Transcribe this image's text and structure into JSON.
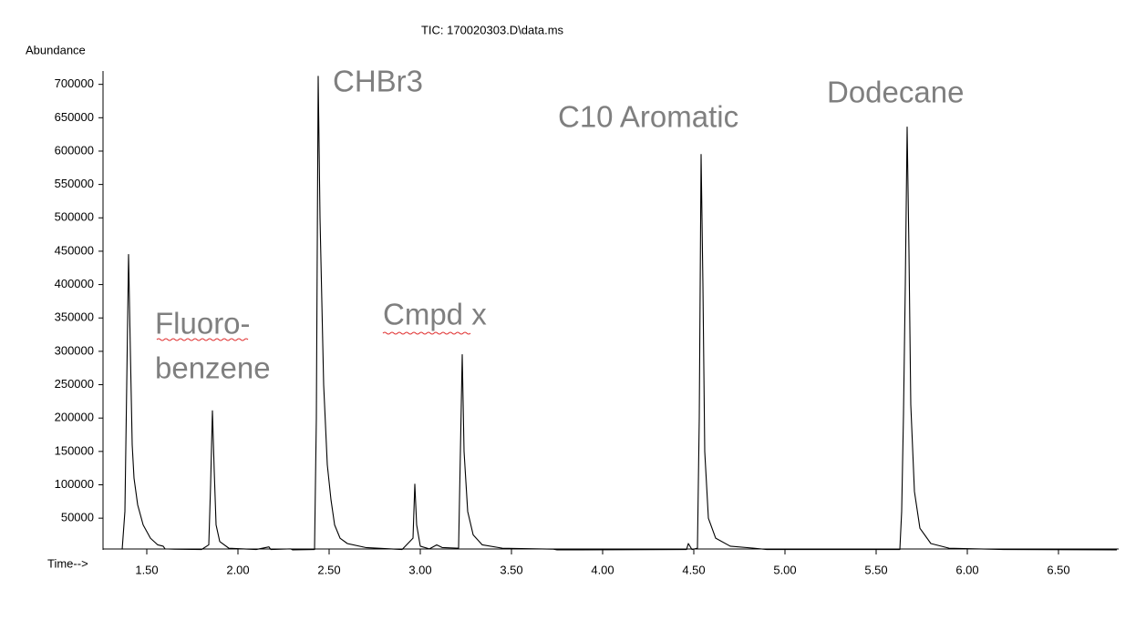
{
  "chart_data": {
    "type": "line",
    "title": "TIC: 170020303.D\\data.ms",
    "ylabel": "Abundance",
    "xlabel": "Time-->",
    "annotations": [
      "Fluoro-",
      "benzene",
      "CHBr3",
      "Cmpd x",
      "C10 Aromatic",
      "Dodecane"
    ],
    "x": [
      1.365,
      1.38,
      1.39,
      1.4,
      1.41,
      1.42,
      1.43,
      1.45,
      1.48,
      1.52,
      1.56,
      1.59,
      1.6,
      1.65,
      1.8,
      1.84,
      1.85,
      1.86,
      1.87,
      1.88,
      1.9,
      1.95,
      2.1,
      2.17,
      2.18,
      2.29,
      2.3,
      2.42,
      2.43,
      2.44,
      2.45,
      2.47,
      2.49,
      2.51,
      2.53,
      2.56,
      2.6,
      2.7,
      2.9,
      2.96,
      2.97,
      2.98,
      3.0,
      3.05,
      3.09,
      3.12,
      3.21,
      3.22,
      3.23,
      3.24,
      3.26,
      3.29,
      3.34,
      3.45,
      3.73,
      3.75,
      4.46,
      4.47,
      4.49,
      4.52,
      4.53,
      4.54,
      4.55,
      4.56,
      4.58,
      4.62,
      4.7,
      4.83,
      4.9,
      5.63,
      5.64,
      5.65,
      5.66,
      5.67,
      5.68,
      5.69,
      5.71,
      5.74,
      5.8,
      5.9,
      6.2,
      6.82
    ],
    "series": [
      {
        "color": "#000000",
        "values": [
          3000,
          60000,
          250000,
          445000,
          300000,
          160000,
          110000,
          70000,
          40000,
          20000,
          10000,
          8000,
          4000,
          3500,
          3000,
          10000,
          100000,
          211000,
          120000,
          40000,
          15000,
          5000,
          3000,
          7000,
          3000,
          4000,
          2500,
          3000,
          200000,
          712000,
          500000,
          250000,
          130000,
          78000,
          40000,
          20000,
          12000,
          6000,
          3000,
          20000,
          101000,
          40000,
          8000,
          4000,
          10000,
          6000,
          5000,
          150000,
          295000,
          150000,
          60000,
          25000,
          10000,
          5000,
          3500,
          2500,
          3000,
          12000,
          3000,
          5000,
          200000,
          595000,
          400000,
          150000,
          50000,
          20000,
          8000,
          5000,
          3000,
          3000,
          60000,
          205000,
          400000,
          636000,
          450000,
          220000,
          90000,
          35000,
          12000,
          5000,
          3000,
          2500
        ]
      }
    ],
    "xlim": [
      1.26,
      6.83
    ],
    "ylim": [
      0,
      720000
    ],
    "xticks": [
      {
        "value": 1.5,
        "label": "1.50"
      },
      {
        "value": 2.0,
        "label": "2.00"
      },
      {
        "value": 2.5,
        "label": "2.50"
      },
      {
        "value": 3.0,
        "label": "3.00"
      },
      {
        "value": 3.5,
        "label": "3.50"
      },
      {
        "value": 4.0,
        "label": "4.00"
      },
      {
        "value": 4.5,
        "label": "4.50"
      },
      {
        "value": 5.0,
        "label": "5.00"
      },
      {
        "value": 5.5,
        "label": "5.50"
      },
      {
        "value": 6.0,
        "label": "6.00"
      },
      {
        "value": 6.5,
        "label": "6.50"
      }
    ],
    "yticks": [
      50000,
      100000,
      150000,
      200000,
      250000,
      300000,
      350000,
      400000,
      450000,
      500000,
      550000,
      600000,
      650000,
      700000
    ],
    "annotation_color": "#7f7f7f"
  }
}
